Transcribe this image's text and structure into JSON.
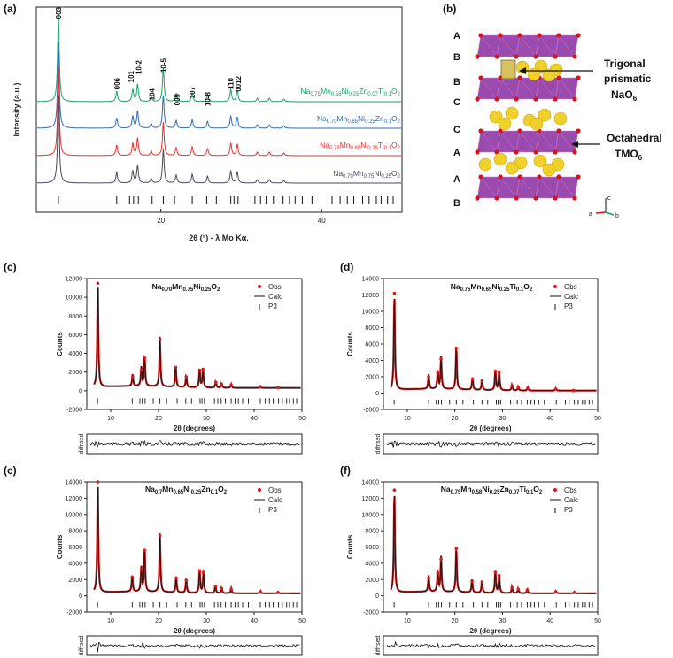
{
  "panel_labels": [
    "(a)",
    "(b)",
    "(c)",
    "(d)",
    "(e)",
    "(f)"
  ],
  "chart_data": [
    {
      "id": "a",
      "type": "line",
      "title": "",
      "xlabel_main": "2θ (°) - λ Mo Kα.",
      "ylabel": "Intensity (a.u.)",
      "xlim": [
        4.5,
        50
      ],
      "xticks": [
        20,
        40
      ],
      "peaks": [
        7.25,
        14.5,
        16.5,
        17.1,
        18.8,
        20.3,
        21.9,
        23.9,
        25.8,
        28.7,
        29.5,
        32.0,
        33.5,
        35.3
      ],
      "peak_rel_intensity": [
        1.0,
        0.12,
        0.14,
        0.2,
        0.05,
        0.38,
        0.09,
        0.1,
        0.08,
        0.14,
        0.13,
        0.04,
        0.04,
        0.03
      ],
      "peak_labels": [
        "003",
        "006",
        "101",
        "10-2",
        "104",
        "10-5",
        "009",
        "107",
        "10-8",
        "110",
        "0012"
      ],
      "series": [
        {
          "name": "Na0.75Mn0.58Ni0.25Zn0.07Ti0.1O2",
          "color": "#1aa36a"
        },
        {
          "name": "Na0.70Mn0.65Ni0.25Zn0.1O2",
          "color": "#2f6db5"
        },
        {
          "name": "Na0.75Mn0.65Ni0.25Ti0.1O2",
          "color": "#e8322e"
        },
        {
          "name": "Na0.70Mn0.75Ni0.25O2",
          "color": "#4a4a5e"
        }
      ],
      "reference_ticks": [
        7.25,
        14.5,
        16.1,
        16.6,
        17.2,
        18.9,
        20.3,
        21.7,
        23.9,
        25.7,
        26.9,
        28.7,
        29.1,
        29.6,
        31.7,
        32.4,
        33.1,
        34.0,
        35.2,
        36.0,
        36.7,
        37.6,
        38.8,
        41.3,
        42.3,
        43.2,
        44.0,
        45.1,
        45.9,
        46.8,
        47.4,
        48.2,
        48.9
      ]
    },
    {
      "id": "c",
      "type": "line",
      "title": "Na0.70Mn0.75Ni0.25O2",
      "xlabel": "2θ (degrees)",
      "ylabel": "Counts",
      "xlim": [
        5,
        50
      ],
      "ylim": [
        -2000,
        12000
      ],
      "xticks": [
        10,
        20,
        30,
        40,
        50
      ],
      "yticks": [
        -2000,
        0,
        2000,
        4000,
        6000,
        8000,
        10000,
        12000
      ],
      "peaks": [
        7.3,
        14.6,
        16.4,
        17.1,
        20.3,
        23.6,
        25.8,
        28.6,
        29.3,
        32.0,
        33.2,
        35.2,
        41.3,
        45.0
      ],
      "peak_values": [
        11500,
        1500,
        2200,
        3500,
        5500,
        2500,
        1500,
        2200,
        2300,
        900,
        700,
        600,
        400,
        300
      ],
      "legend": [
        "Obs",
        "Calc",
        "P3"
      ],
      "diff_label": "diffrsed"
    },
    {
      "id": "d",
      "type": "line",
      "title": "Na0.75Mn0.65Ni0.25Ti0.1O2",
      "xlabel": "2θ (degrees)",
      "ylabel": "Counts",
      "xlim": [
        5,
        50
      ],
      "ylim": [
        -2000,
        14000
      ],
      "xticks": [
        10,
        20,
        30,
        40,
        50
      ],
      "yticks": [
        -2000,
        0,
        2000,
        4000,
        6000,
        8000,
        10000,
        12000,
        14000
      ],
      "peaks": [
        7.3,
        14.5,
        16.4,
        17.1,
        20.3,
        23.7,
        25.7,
        28.5,
        29.3,
        32.0,
        33.3,
        35.3,
        41.2,
        44.9
      ],
      "peak_values": [
        12200,
        2000,
        2500,
        4200,
        5500,
        1700,
        1500,
        2700,
        2600,
        900,
        700,
        600,
        500,
        300
      ],
      "legend": [
        "Obs",
        "Calc",
        "P3"
      ],
      "diff_label": "diffrsed"
    },
    {
      "id": "e",
      "type": "line",
      "title": "Na0.7Mn0.65Ni0.25Zn0.1O2",
      "xlabel": "2θ (degrees)",
      "ylabel": "Counts",
      "xlim": [
        5,
        50
      ],
      "ylim": [
        -2000,
        14000
      ],
      "xticks": [
        10,
        20,
        30,
        40,
        50
      ],
      "yticks": [
        -2000,
        0,
        2000,
        4000,
        6000,
        8000,
        10000,
        12000,
        14000
      ],
      "peaks": [
        7.3,
        14.5,
        16.4,
        17.1,
        20.3,
        23.7,
        25.8,
        28.6,
        29.4,
        31.9,
        33.2,
        35.2,
        41.3,
        45.0
      ],
      "peak_values": [
        14000,
        2300,
        3200,
        5600,
        7400,
        2200,
        1900,
        3100,
        2900,
        1200,
        900,
        800,
        500,
        400
      ],
      "legend": [
        "Obs",
        "Calc",
        "P3"
      ],
      "diff_label": "diffrsed"
    },
    {
      "id": "f",
      "type": "line",
      "title": "Na0.75Mn0.58Ni0.25Zn0.07Ti0.1O2",
      "xlabel": "2θ (degrees)",
      "ylabel": "Counts",
      "xlim": [
        5,
        50
      ],
      "ylim": [
        -2000,
        14000
      ],
      "xticks": [
        10,
        20,
        30,
        40,
        50
      ],
      "yticks": [
        -2000,
        0,
        2000,
        4000,
        6000,
        8000,
        10000,
        12000,
        14000
      ],
      "peaks": [
        7.3,
        14.5,
        16.4,
        17.1,
        20.3,
        23.6,
        25.7,
        28.5,
        29.3,
        32.0,
        33.3,
        35.2,
        41.2,
        45.1
      ],
      "peak_values": [
        13000,
        2200,
        2800,
        4500,
        5800,
        1800,
        1700,
        2900,
        2500,
        1000,
        800,
        700,
        500,
        400
      ],
      "legend": [
        "Obs",
        "Calc",
        "P3"
      ],
      "diff_label": "diffrsed"
    }
  ],
  "structure": {
    "layer_letters_left": [
      "A",
      "B",
      "B",
      "C",
      "C",
      "A",
      "A",
      "B"
    ],
    "trigonal_label_1": "Trigonal",
    "trigonal_label_2": "prismatic",
    "trigonal_label_3": "NaO6",
    "octahedral_label_1": "Octahedral",
    "octahedral_label_2": "TMO6",
    "axis_c": "c",
    "axis_a": "a",
    "axis_b": "b",
    "colors": {
      "octahedra": "#8a2aa0",
      "sodium": "#f0d02a",
      "oxygen": "#d8141a"
    }
  }
}
